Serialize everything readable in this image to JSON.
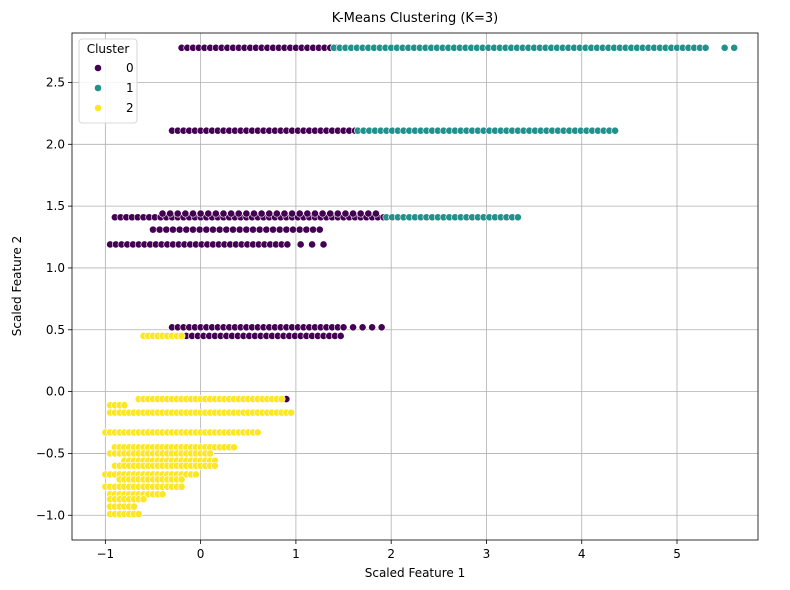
{
  "chart_data": {
    "type": "scatter",
    "title": "K-Means Clustering (K=3)",
    "xlabel": "Scaled Feature 1",
    "ylabel": "Scaled Feature 2",
    "xlim": [
      -1.35,
      5.85
    ],
    "ylim": [
      -1.2,
      2.9
    ],
    "x_ticks": [
      -1,
      0,
      1,
      2,
      3,
      4,
      5
    ],
    "x_tick_labels": [
      "−1",
      "0",
      "1",
      "2",
      "3",
      "4",
      "5"
    ],
    "y_ticks": [
      -1.0,
      -0.5,
      0.0,
      0.5,
      1.0,
      1.5,
      2.0,
      2.5
    ],
    "y_tick_labels": [
      "−1.0",
      "−0.5",
      "0.0",
      "0.5",
      "1.0",
      "1.5",
      "2.0",
      "2.5"
    ],
    "grid": true,
    "legend": {
      "title": "Cluster",
      "placement": "top-left"
    },
    "series": [
      {
        "name": "0",
        "color": "#440154",
        "bands": [
          {
            "y": 2.78,
            "x": [
              -0.2,
              1.45
            ],
            "step": 0.06
          },
          {
            "y": 2.11,
            "x": [
              -0.3,
              1.65
            ],
            "step": 0.06
          },
          {
            "y": 1.41,
            "x": [
              -0.9,
              1.95
            ],
            "step": 0.06
          },
          {
            "y": 1.44,
            "x": [
              -0.4,
              1.9
            ],
            "step": 0.08
          },
          {
            "y": 1.31,
            "x": [
              -0.5,
              1.25
            ],
            "step": 0.07
          },
          {
            "y": 1.19,
            "x": [
              -0.95,
              0.95
            ],
            "step": 0.06
          },
          {
            "y": 1.19,
            "x": [
              1.05,
              1.35
            ],
            "step": 0.12
          },
          {
            "y": 0.52,
            "x": [
              -0.3,
              1.5
            ],
            "step": 0.06
          },
          {
            "y": 0.52,
            "x": [
              1.6,
              1.95
            ],
            "step": 0.1
          },
          {
            "y": 0.45,
            "x": [
              -0.15,
              1.5
            ],
            "step": 0.06
          },
          {
            "y": -0.06,
            "x": [
              0.8,
              0.9
            ],
            "step": 0.05
          }
        ]
      },
      {
        "name": "1",
        "color": "#21918c",
        "bands": [
          {
            "y": 2.78,
            "x": [
              1.4,
              5.35
            ],
            "step": 0.06
          },
          {
            "y": 2.78,
            "x": [
              5.5,
              5.62
            ],
            "step": 0.1
          },
          {
            "y": 2.11,
            "x": [
              1.65,
              4.35
            ],
            "step": 0.06
          },
          {
            "y": 1.41,
            "x": [
              1.95,
              3.35
            ],
            "step": 0.06
          }
        ]
      },
      {
        "name": "2",
        "color": "#fde725",
        "bands": [
          {
            "y": 0.45,
            "x": [
              -0.6,
              -0.2
            ],
            "step": 0.05
          },
          {
            "y": -0.06,
            "x": [
              -0.65,
              0.85
            ],
            "step": 0.05
          },
          {
            "y": -0.11,
            "x": [
              -0.95,
              -0.8
            ],
            "step": 0.05
          },
          {
            "y": -0.17,
            "x": [
              -0.95,
              0.95
            ],
            "step": 0.05
          },
          {
            "y": -0.33,
            "x": [
              -1.0,
              0.6
            ],
            "step": 0.05
          },
          {
            "y": -0.45,
            "x": [
              -0.9,
              0.35
            ],
            "step": 0.05
          },
          {
            "y": -0.5,
            "x": [
              -0.95,
              0.1
            ],
            "step": 0.05
          },
          {
            "y": -0.56,
            "x": [
              -0.8,
              0.15
            ],
            "step": 0.05
          },
          {
            "y": -0.6,
            "x": [
              -0.9,
              0.15
            ],
            "step": 0.05
          },
          {
            "y": -0.67,
            "x": [
              -1.0,
              -0.05
            ],
            "step": 0.05
          },
          {
            "y": -0.71,
            "x": [
              -0.85,
              -0.2
            ],
            "step": 0.05
          },
          {
            "y": -0.77,
            "x": [
              -1.0,
              -0.2
            ],
            "step": 0.05
          },
          {
            "y": -0.83,
            "x": [
              -0.95,
              -0.4
            ],
            "step": 0.05
          },
          {
            "y": -0.87,
            "x": [
              -0.95,
              -0.6
            ],
            "step": 0.05
          },
          {
            "y": -0.93,
            "x": [
              -0.95,
              -0.7
            ],
            "step": 0.05
          },
          {
            "y": -0.99,
            "x": [
              -0.95,
              -0.65
            ],
            "step": 0.05
          }
        ]
      }
    ]
  }
}
